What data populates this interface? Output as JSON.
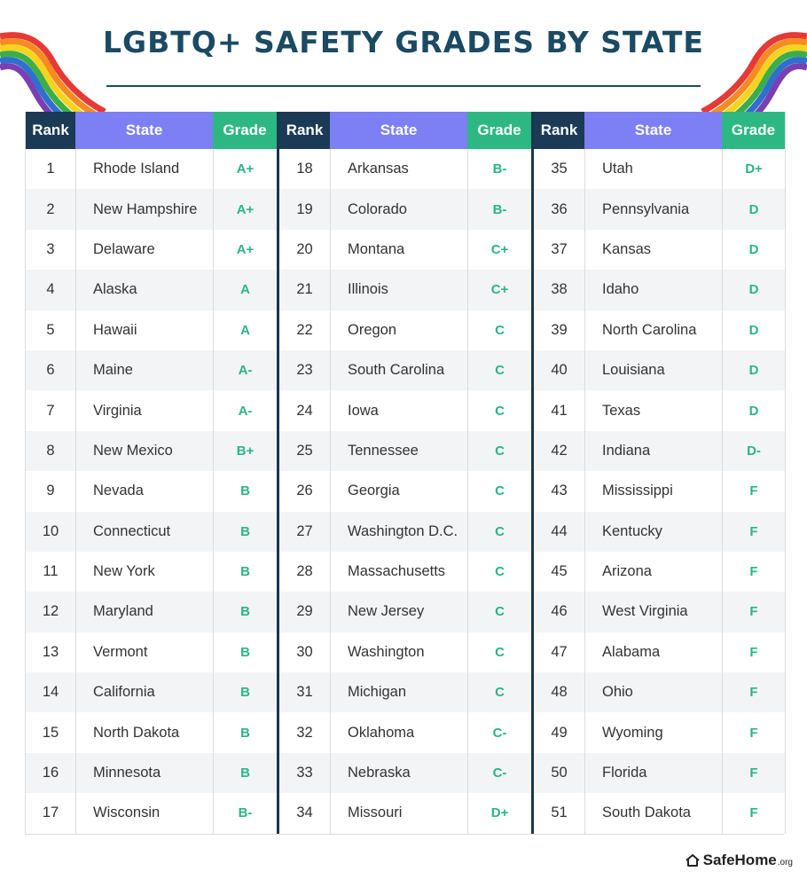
{
  "title": "LGBTQ+ SAFETY GRADES BY STATE",
  "headers": {
    "rank": "Rank",
    "state": "State",
    "grade": "Grade"
  },
  "colors": {
    "title": "#1b4a63",
    "rank_header": "#1b3a56",
    "state_header": "#7d7ff4",
    "grade_header": "#2db883",
    "grade_text": "#2bb584"
  },
  "logo": {
    "brand": "SafeHome",
    "tld": ".org",
    "icon": "house-icon"
  },
  "groups": [
    {
      "rows": [
        {
          "rank": "1",
          "state": "Rhode Island",
          "grade": "A+"
        },
        {
          "rank": "2",
          "state": "New Hampshire",
          "grade": "A+"
        },
        {
          "rank": "3",
          "state": "Delaware",
          "grade": "A+"
        },
        {
          "rank": "4",
          "state": "Alaska",
          "grade": "A"
        },
        {
          "rank": "5",
          "state": "Hawaii",
          "grade": "A"
        },
        {
          "rank": "6",
          "state": "Maine",
          "grade": "A-"
        },
        {
          "rank": "7",
          "state": "Virginia",
          "grade": "A-"
        },
        {
          "rank": "8",
          "state": "New Mexico",
          "grade": "B+"
        },
        {
          "rank": "9",
          "state": "Nevada",
          "grade": "B"
        },
        {
          "rank": "10",
          "state": "Connecticut",
          "grade": "B"
        },
        {
          "rank": "11",
          "state": "New York",
          "grade": "B"
        },
        {
          "rank": "12",
          "state": "Maryland",
          "grade": "B"
        },
        {
          "rank": "13",
          "state": "Vermont",
          "grade": "B"
        },
        {
          "rank": "14",
          "state": "California",
          "grade": "B"
        },
        {
          "rank": "15",
          "state": "North Dakota",
          "grade": "B"
        },
        {
          "rank": "16",
          "state": "Minnesota",
          "grade": "B"
        },
        {
          "rank": "17",
          "state": "Wisconsin",
          "grade": "B-"
        }
      ]
    },
    {
      "rows": [
        {
          "rank": "18",
          "state": "Arkansas",
          "grade": "B-"
        },
        {
          "rank": "19",
          "state": "Colorado",
          "grade": "B-"
        },
        {
          "rank": "20",
          "state": "Montana",
          "grade": "C+"
        },
        {
          "rank": "21",
          "state": "Illinois",
          "grade": "C+"
        },
        {
          "rank": "22",
          "state": "Oregon",
          "grade": "C"
        },
        {
          "rank": "23",
          "state": "South Carolina",
          "grade": "C"
        },
        {
          "rank": "24",
          "state": "Iowa",
          "grade": "C"
        },
        {
          "rank": "25",
          "state": "Tennessee",
          "grade": "C"
        },
        {
          "rank": "26",
          "state": "Georgia",
          "grade": "C"
        },
        {
          "rank": "27",
          "state": "Washington D.C.",
          "grade": "C"
        },
        {
          "rank": "28",
          "state": "Massachusetts",
          "grade": "C"
        },
        {
          "rank": "29",
          "state": "New Jersey",
          "grade": "C"
        },
        {
          "rank": "30",
          "state": "Washington",
          "grade": "C"
        },
        {
          "rank": "31",
          "state": "Michigan",
          "grade": "C"
        },
        {
          "rank": "32",
          "state": "Oklahoma",
          "grade": "C-"
        },
        {
          "rank": "33",
          "state": "Nebraska",
          "grade": "C-"
        },
        {
          "rank": "34",
          "state": "Missouri",
          "grade": "D+"
        }
      ]
    },
    {
      "rows": [
        {
          "rank": "35",
          "state": "Utah",
          "grade": "D+"
        },
        {
          "rank": "36",
          "state": "Pennsylvania",
          "grade": "D"
        },
        {
          "rank": "37",
          "state": "Kansas",
          "grade": "D"
        },
        {
          "rank": "38",
          "state": "Idaho",
          "grade": "D"
        },
        {
          "rank": "39",
          "state": "North Carolina",
          "grade": "D"
        },
        {
          "rank": "40",
          "state": "Louisiana",
          "grade": "D"
        },
        {
          "rank": "41",
          "state": "Texas",
          "grade": "D"
        },
        {
          "rank": "42",
          "state": "Indiana",
          "grade": "D-"
        },
        {
          "rank": "43",
          "state": "Mississippi",
          "grade": "F"
        },
        {
          "rank": "44",
          "state": "Kentucky",
          "grade": "F"
        },
        {
          "rank": "45",
          "state": "Arizona",
          "grade": "F"
        },
        {
          "rank": "46",
          "state": "West Virginia",
          "grade": "F"
        },
        {
          "rank": "47",
          "state": "Alabama",
          "grade": "F"
        },
        {
          "rank": "48",
          "state": "Ohio",
          "grade": "F"
        },
        {
          "rank": "49",
          "state": "Wyoming",
          "grade": "F"
        },
        {
          "rank": "50",
          "state": "Florida",
          "grade": "F"
        },
        {
          "rank": "51",
          "state": "South Dakota",
          "grade": "F"
        }
      ]
    }
  ]
}
